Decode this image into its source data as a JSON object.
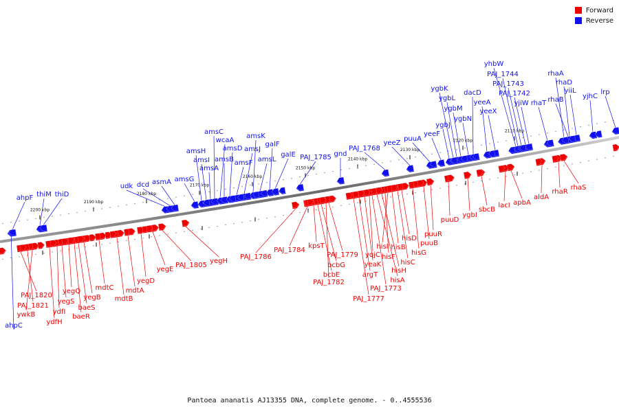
{
  "legend": {
    "items": [
      {
        "label": "Forward",
        "color": "#ee0000"
      },
      {
        "label": "Reverse",
        "color": "#1010ee"
      }
    ]
  },
  "caption": "Pantoea ananatis AJ13355 DNA, complete genome. - 0..4555536",
  "colors": {
    "forward": "#ee0000",
    "reverse": "#1010ee",
    "axis": "#777777"
  },
  "ticks": [
    "2110 kbp",
    "2120 kbp",
    "2130 kbp",
    "2140 kbp",
    "2150 kbp",
    "2160 kbp",
    "2170 kbp",
    "2180 kbp",
    "2190 kbp",
    "2200 kbp"
  ],
  "reverse_genes": [
    "ahpC",
    "ahpF",
    "thiM",
    "thiD",
    "udk",
    "dcd",
    "asmA",
    "amsG",
    "amsH",
    "amsI",
    "amsA",
    "amsC",
    "wcaA",
    "amsB",
    "amsD",
    "amsF",
    "amsJ",
    "amsK",
    "amsL",
    "galF",
    "galE",
    "PAJ_1785",
    "gnd",
    "PAJ_1768",
    "yeeZ",
    "puuA",
    "yeeF",
    "ygbJ",
    "ygbK",
    "ygbL",
    "ygbM",
    "ygbN",
    "dacD",
    "yeeA",
    "yeeX",
    "yhbW",
    "PAJ_1744",
    "PAJ_1743",
    "PAJ_1742",
    "yjiW",
    "rhaT",
    "rhaA",
    "rhaD",
    "rhaB",
    "yiiL",
    "yjhC",
    "lrp"
  ],
  "forward_genes": [
    "PAJ_1820",
    "PAJ_1821",
    "ywkB",
    "ydfH",
    "ydfI",
    "yegS",
    "yegQ",
    "baeR",
    "baeS",
    "yegB",
    "mdtC",
    "mdtB",
    "mdtA",
    "yegD",
    "yegE",
    "PAJ_1805",
    "yegH",
    "PAJ_1786",
    "PAJ_1784",
    "kpsT",
    "bcbE",
    "bcbG",
    "PAJ_1782",
    "PAJ_1779",
    "PAJ_1777",
    "argT",
    "yeaK",
    "yqjC",
    "PAJ_1773",
    "hisA",
    "hisH",
    "hisF",
    "hisI",
    "hisB",
    "hisC",
    "hisD",
    "hisG",
    "puuB",
    "puuR",
    "puuD",
    "ygbI",
    "sbcB",
    "lacI",
    "apbA",
    "aldA",
    "rhaR",
    "rhaS"
  ]
}
